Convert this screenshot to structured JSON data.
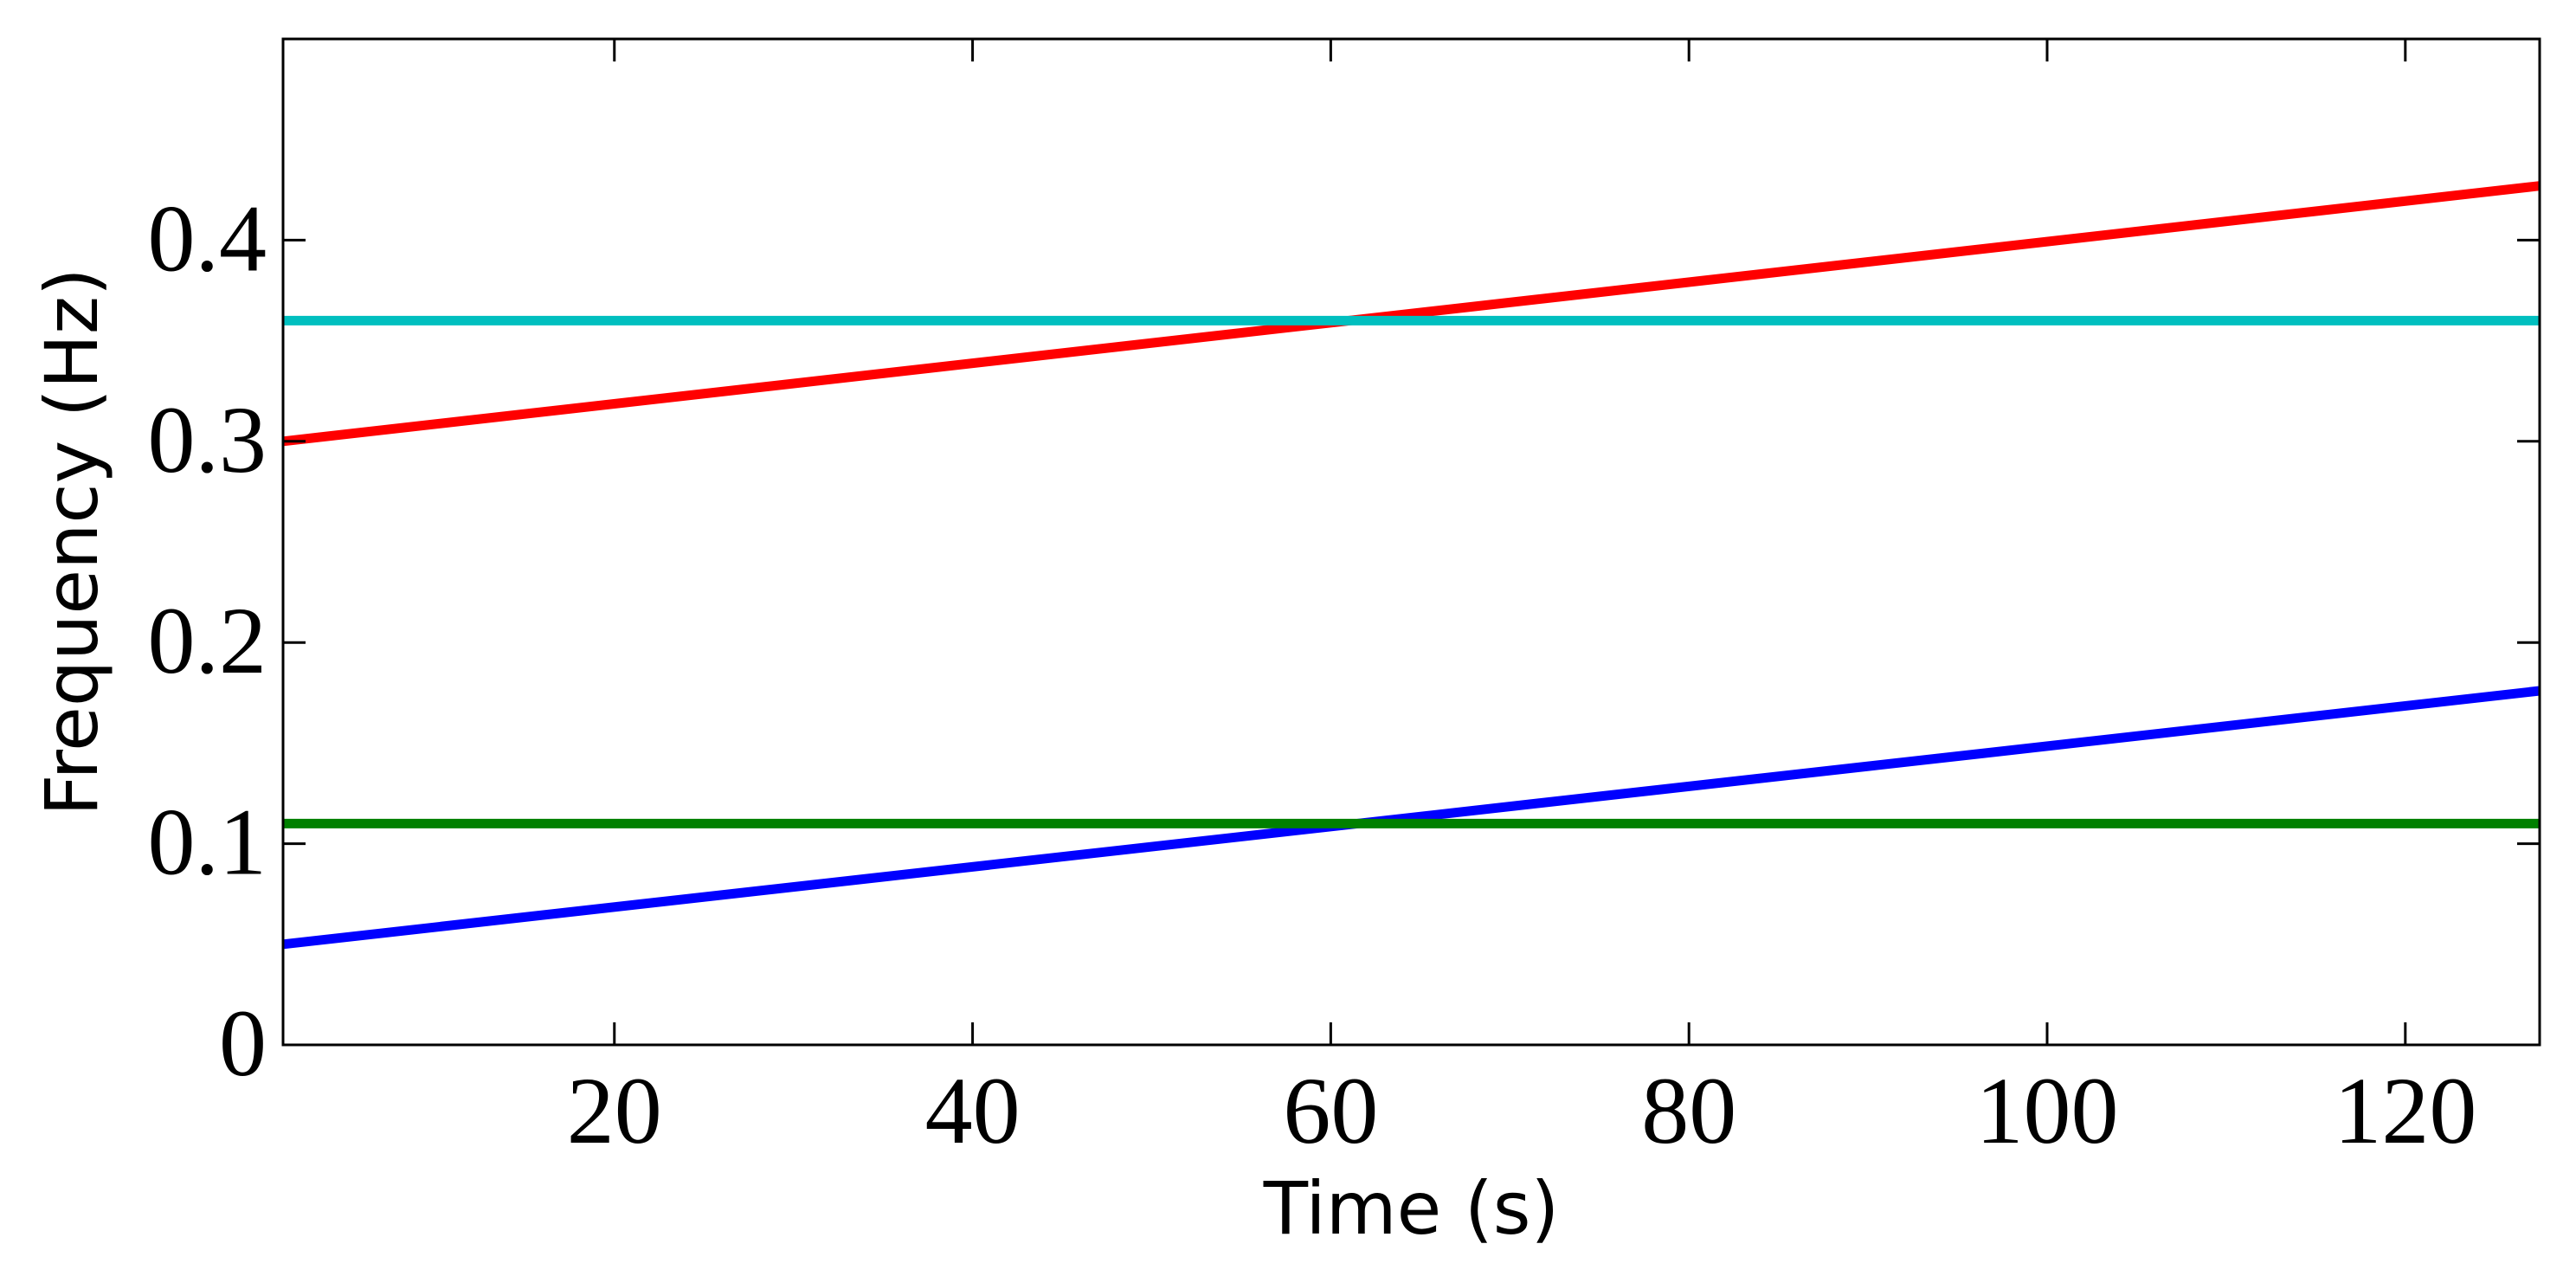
{
  "chart_data": {
    "type": "line",
    "title": "",
    "xlabel": "Time (s)",
    "ylabel": "Frequency (Hz)",
    "xlim": [
      1.5,
      127.5
    ],
    "ylim": [
      0,
      0.5
    ],
    "xticks": [
      20,
      40,
      60,
      80,
      100,
      120
    ],
    "xtick_labels": [
      "20",
      "40",
      "60",
      "80",
      "100",
      "120"
    ],
    "yticks": [
      0,
      0.1,
      0.2,
      0.3,
      0.4
    ],
    "ytick_labels": [
      "0",
      "0.1",
      "0.2",
      "0.3",
      "0.4"
    ],
    "grid": false,
    "legend": "none",
    "series": [
      {
        "name": "red",
        "color": "#ff0000",
        "x": [
          1.5,
          127.5
        ],
        "y": [
          0.3,
          0.427
        ]
      },
      {
        "name": "cyan",
        "color": "#00bfbf",
        "x": [
          1.5,
          127.5
        ],
        "y": [
          0.36,
          0.36
        ]
      },
      {
        "name": "blue",
        "color": "#0000ff",
        "x": [
          1.5,
          127.5
        ],
        "y": [
          0.05,
          0.176
        ]
      },
      {
        "name": "green",
        "color": "#008000",
        "x": [
          1.5,
          127.5
        ],
        "y": [
          0.11,
          0.11
        ]
      }
    ]
  }
}
